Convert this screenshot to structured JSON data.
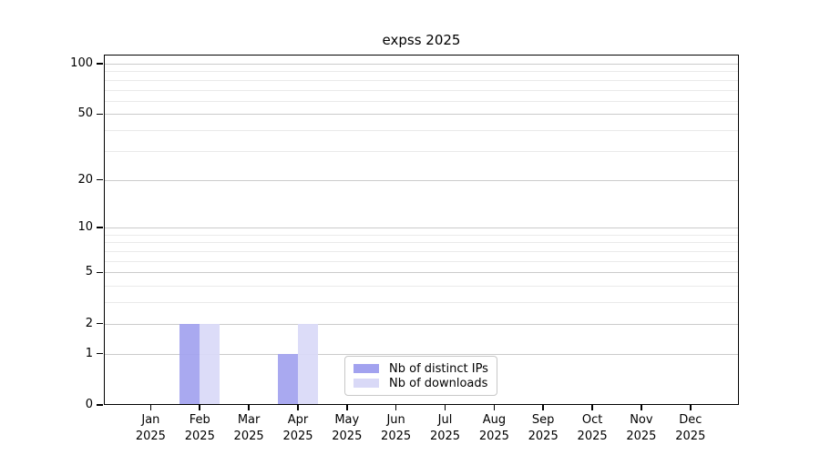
{
  "chart_data": {
    "type": "bar",
    "title": "expss 2025",
    "categories": [
      "Jan 2025",
      "Feb 2025",
      "Mar 2025",
      "Apr 2025",
      "May 2025",
      "Jun 2025",
      "Jul 2025",
      "Aug 2025",
      "Sep 2025",
      "Oct 2025",
      "Nov 2025",
      "Dec 2025"
    ],
    "series": [
      {
        "name": "Nb of distinct IPs",
        "color": "#a2a2ef",
        "values": [
          0,
          2,
          0,
          1,
          0,
          0,
          0,
          0,
          0,
          0,
          0,
          0
        ]
      },
      {
        "name": "Nb of downloads",
        "color": "#d9d9f7",
        "values": [
          0,
          2,
          0,
          2,
          0,
          0,
          0,
          0,
          0,
          0,
          0,
          0
        ]
      }
    ],
    "yscale": "log1p",
    "ylim": [
      0,
      113
    ],
    "y_major_ticks": [
      0,
      1,
      2,
      5,
      10,
      20,
      50,
      100
    ],
    "y_minor_ticks": [
      3,
      4,
      6,
      7,
      8,
      9,
      30,
      40,
      60,
      70,
      80,
      90
    ],
    "grid": "on",
    "legend_position": "lower center",
    "colors": {
      "grid_major": "#cbcbcb",
      "grid_minor": "#eaeaea",
      "spine": "#000000",
      "background": "#ffffff"
    }
  }
}
